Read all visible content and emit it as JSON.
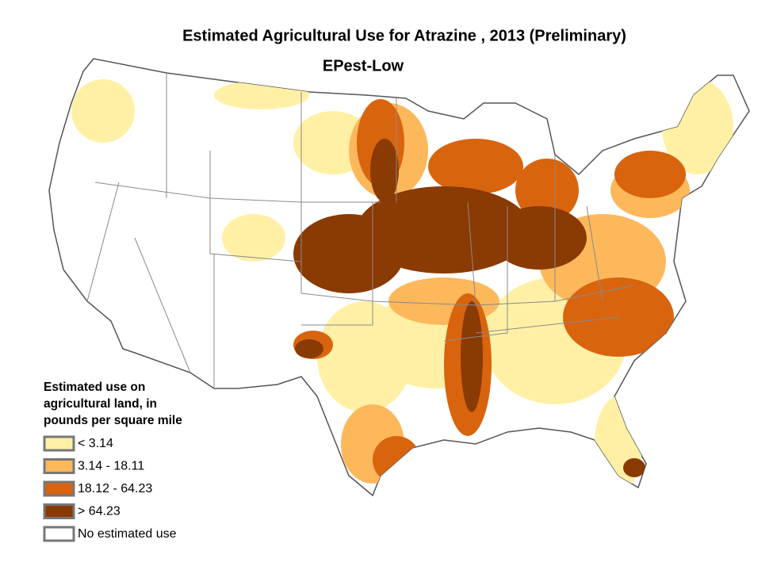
{
  "header": {
    "title": "Estimated Agricultural Use for Atrazine , 2013 (Preliminary)",
    "subtitle": "EPest-Low"
  },
  "legend": {
    "title": [
      "Estimated use on",
      "agricultural land, in",
      "pounds per square mile"
    ],
    "items": [
      {
        "label": "< 3.14",
        "color": "#fff0a6"
      },
      {
        "label": "3.14 - 18.11",
        "color": "#fdb85c"
      },
      {
        "label": "18.12 - 64.23",
        "color": "#d9640e"
      },
      {
        "label": "> 64.23",
        "color": "#8a3a03"
      },
      {
        "label": "No estimated use",
        "color": "#ffffff"
      }
    ]
  }
}
